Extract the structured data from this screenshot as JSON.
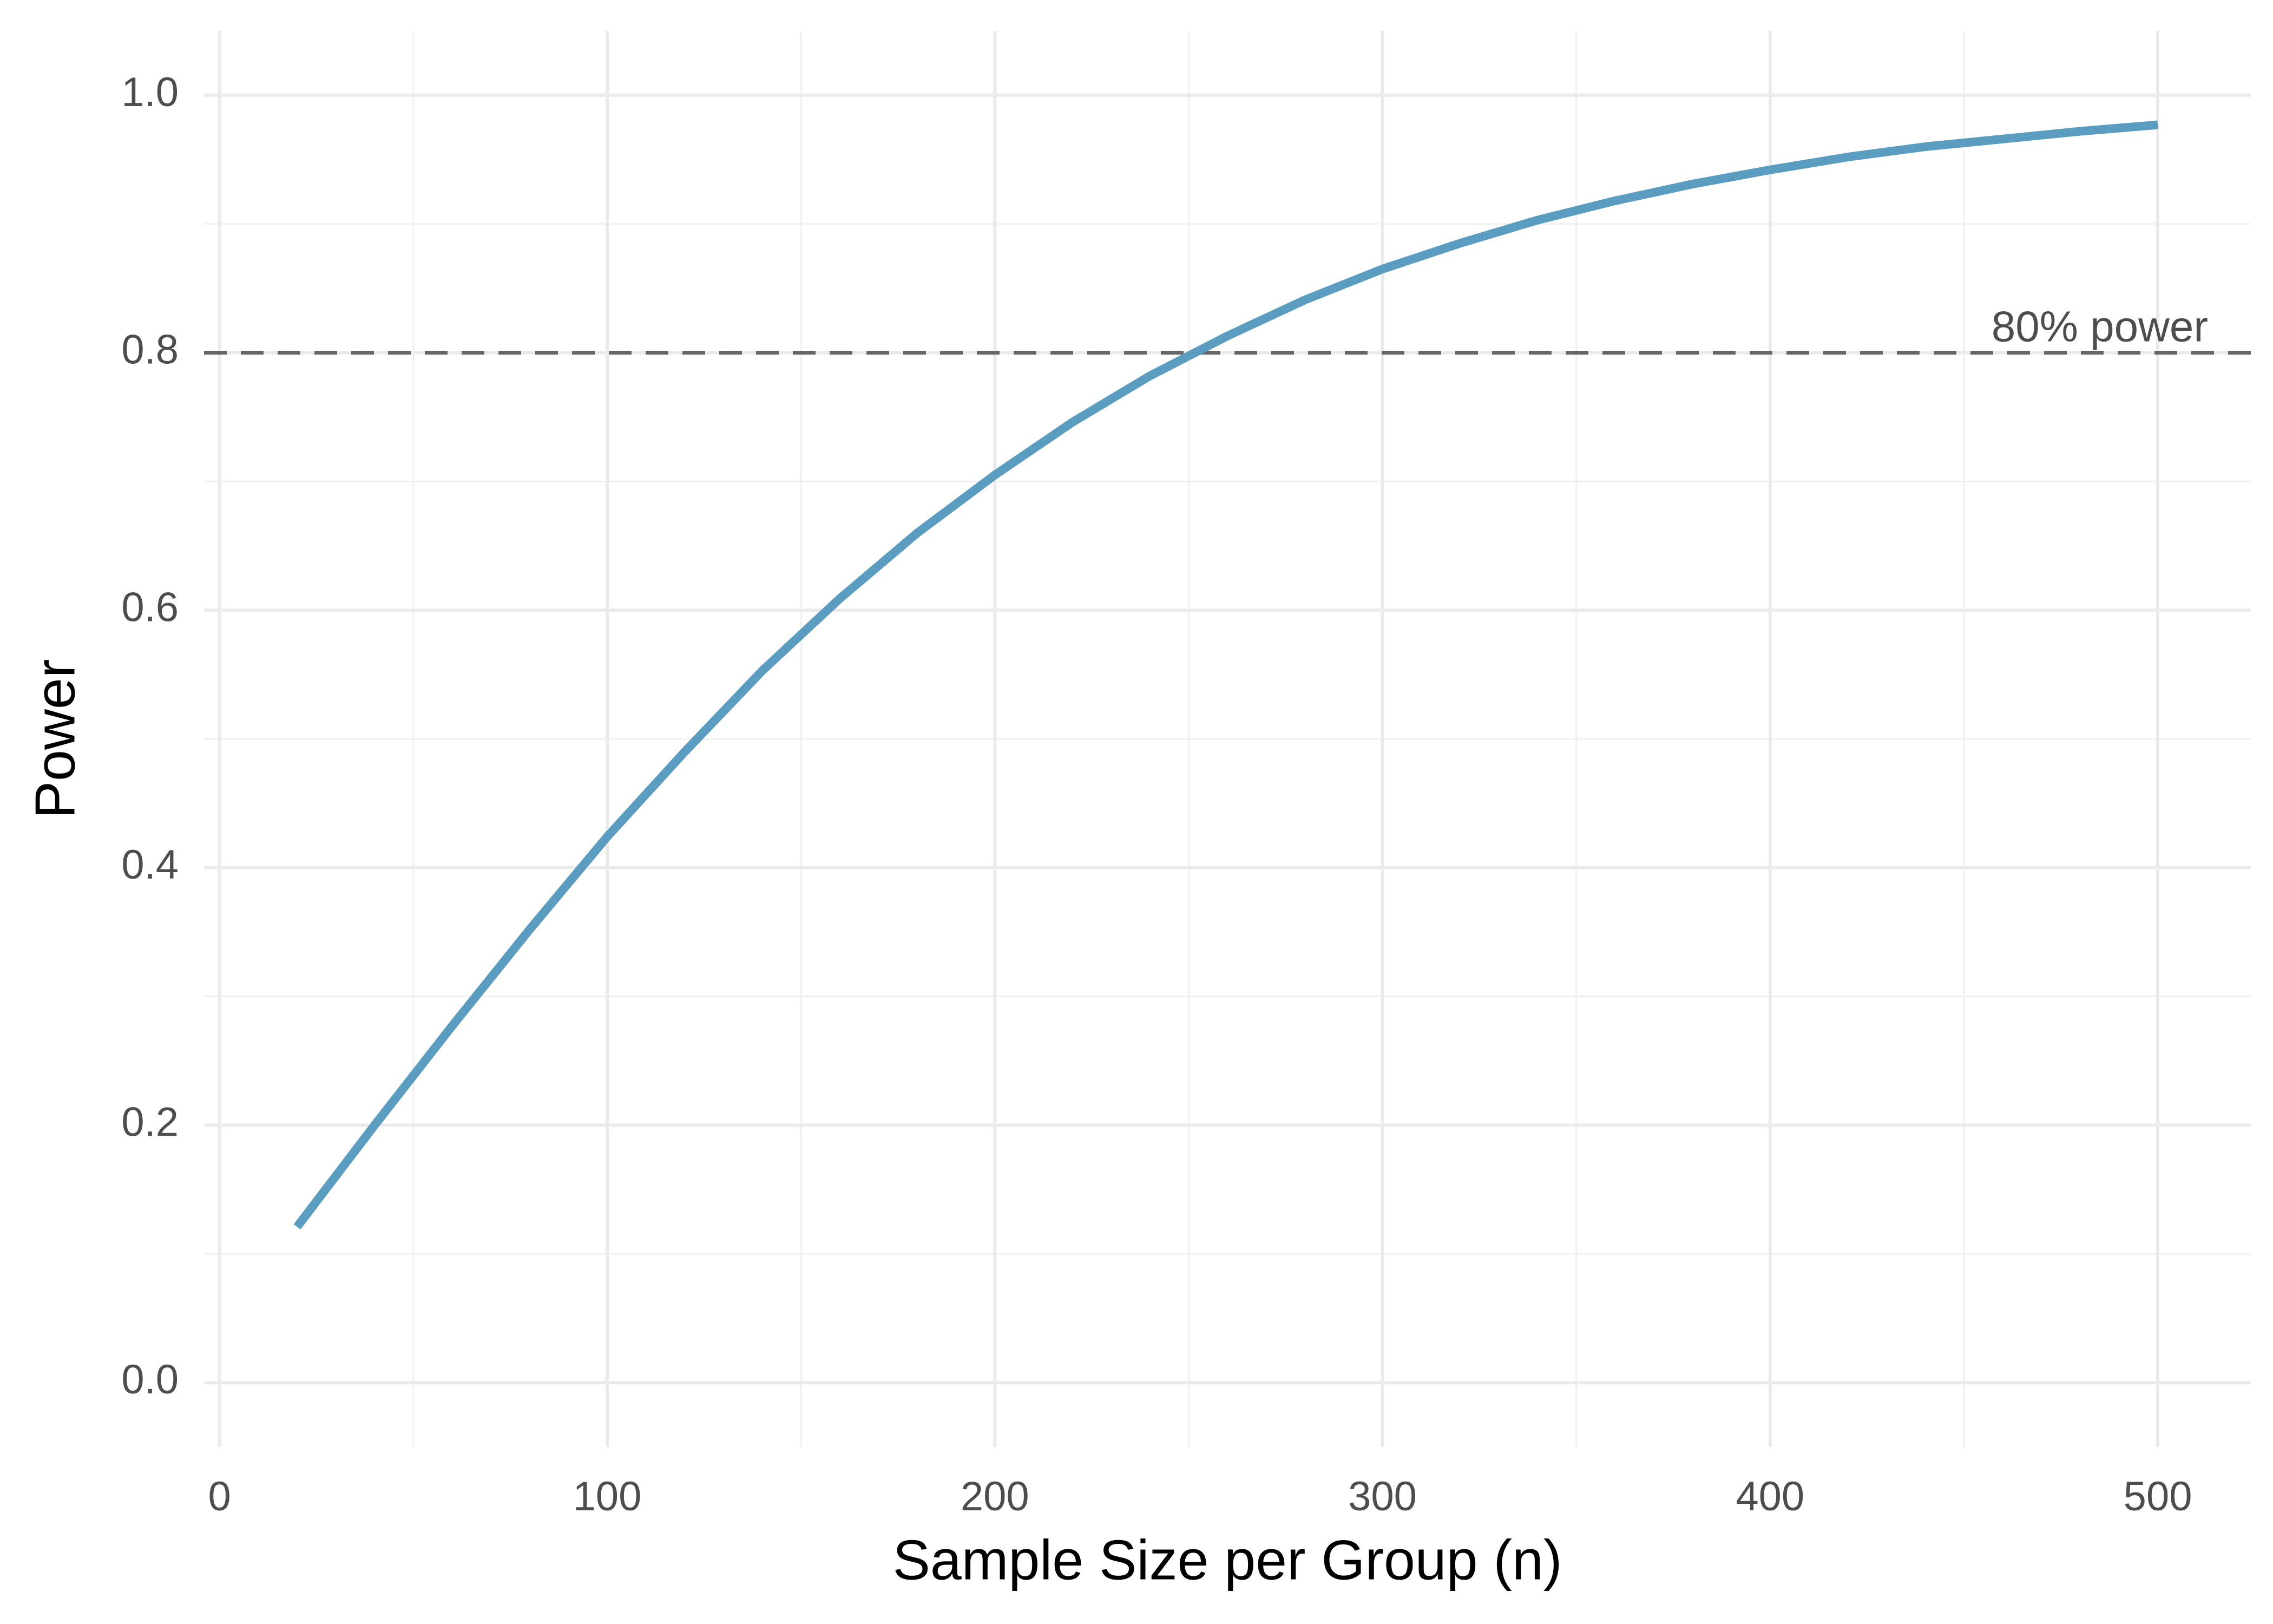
{
  "chart_data": {
    "type": "line",
    "x_label": "Sample Size per Group (n)",
    "y_label": "Power",
    "x": [
      20,
      40,
      60,
      80,
      100,
      120,
      140,
      160,
      180,
      200,
      220,
      240,
      260,
      280,
      300,
      320,
      340,
      360,
      380,
      400,
      420,
      440,
      460,
      480,
      500
    ],
    "values": [
      0.121,
      0.2,
      0.277,
      0.352,
      0.424,
      0.49,
      0.553,
      0.609,
      0.66,
      0.705,
      0.746,
      0.782,
      0.813,
      0.841,
      0.865,
      0.885,
      0.903,
      0.918,
      0.931,
      0.942,
      0.952,
      0.96,
      0.966,
      0.972,
      0.977
    ],
    "color": "#5a9dc0",
    "xlim": [
      -4,
      524
    ],
    "ylim": [
      -0.05,
      1.05
    ],
    "xticks": [
      0,
      100,
      200,
      300,
      400,
      500
    ],
    "yticks": [
      {
        "value": 0,
        "label": "0.0"
      },
      0.2,
      0.4,
      0.6,
      0.8,
      {
        "value": 1,
        "label": "1.0"
      }
    ],
    "x_minor_grid": [
      50,
      150,
      250,
      350,
      450
    ],
    "y_minor_grid": [
      0.1,
      0.3,
      0.5,
      0.7,
      0.9
    ],
    "grid": true,
    "reference_line": {
      "value": 0.8,
      "label": "80% power",
      "color": "#666666"
    }
  }
}
